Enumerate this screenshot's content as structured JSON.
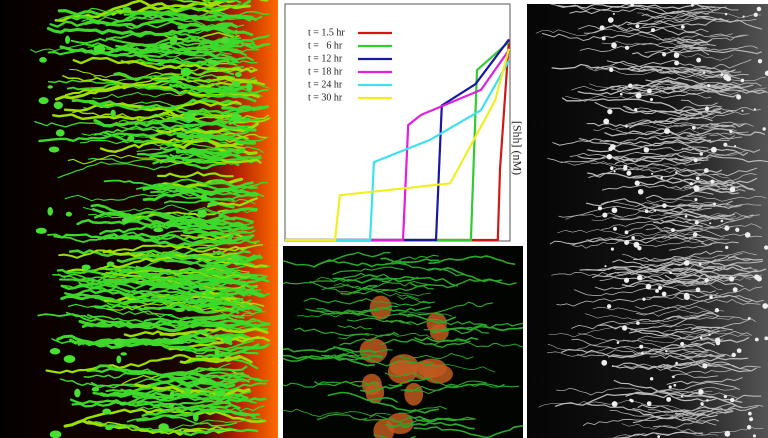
{
  "chart_data": {
    "type": "line",
    "y_label": "[Shh] (nM)",
    "xlim": [
      0,
      100
    ],
    "ylim": [
      0,
      100
    ],
    "series": [
      {
        "name": "t = 1.5 hr",
        "color": "#d01818",
        "x": [
          0,
          95,
          96,
          100
        ],
        "values": [
          0,
          0,
          30,
          85
        ]
      },
      {
        "name": "t =   6 hr",
        "color": "#30cc30",
        "x": [
          0,
          83,
          85.7,
          100
        ],
        "values": [
          0,
          0,
          72,
          84
        ]
      },
      {
        "name": "t = 12 hr",
        "color": "#1818a0",
        "x": [
          0,
          67.4,
          70,
          85,
          100
        ],
        "values": [
          0,
          0,
          57,
          66,
          85
        ]
      },
      {
        "name": "t = 18 hr",
        "color": "#e020e0",
        "x": [
          0,
          52.7,
          55,
          60.7,
          87.5,
          100
        ],
        "values": [
          0,
          0,
          48.7,
          53,
          63.6,
          80.5
        ]
      },
      {
        "name": "t = 24 hr",
        "color": "#40e0f0",
        "x": [
          0,
          38,
          39.7,
          64.7,
          87.5,
          100
        ],
        "values": [
          0,
          0,
          33,
          42.4,
          55,
          76
        ]
      },
      {
        "name": "t = 30 hr",
        "color": "#f0f020",
        "x": [
          0,
          22.3,
          24.5,
          73.7,
          93.75,
          100
        ],
        "values": [
          0,
          0,
          19,
          24,
          59,
          81
        ]
      }
    ]
  }
}
